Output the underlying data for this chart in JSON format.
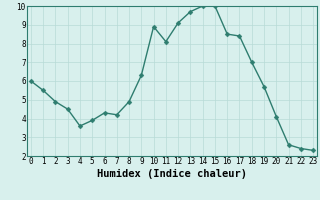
{
  "x": [
    0,
    1,
    2,
    3,
    4,
    5,
    6,
    7,
    8,
    9,
    10,
    11,
    12,
    13,
    14,
    15,
    16,
    17,
    18,
    19,
    20,
    21,
    22,
    23
  ],
  "y": [
    6.0,
    5.5,
    4.9,
    4.5,
    3.6,
    3.9,
    4.3,
    4.2,
    4.9,
    6.3,
    8.9,
    8.1,
    9.1,
    9.7,
    10.0,
    10.0,
    8.5,
    8.4,
    7.0,
    5.7,
    4.1,
    2.6,
    2.4,
    2.3
  ],
  "line_color": "#2e7d6f",
  "marker_color": "#2e7d6f",
  "bg_color": "#d8f0ed",
  "grid_color": "#b8dbd7",
  "xlabel": "Humidex (Indice chaleur)",
  "xlim": [
    -0.3,
    23.3
  ],
  "ylim": [
    2,
    10
  ],
  "yticks": [
    2,
    3,
    4,
    5,
    6,
    7,
    8,
    9,
    10
  ],
  "xticks": [
    0,
    1,
    2,
    3,
    4,
    5,
    6,
    7,
    8,
    9,
    10,
    11,
    12,
    13,
    14,
    15,
    16,
    17,
    18,
    19,
    20,
    21,
    22,
    23
  ],
  "tick_fontsize": 5.5,
  "xlabel_fontsize": 7.5,
  "marker_size": 2.5,
  "line_width": 1.0
}
